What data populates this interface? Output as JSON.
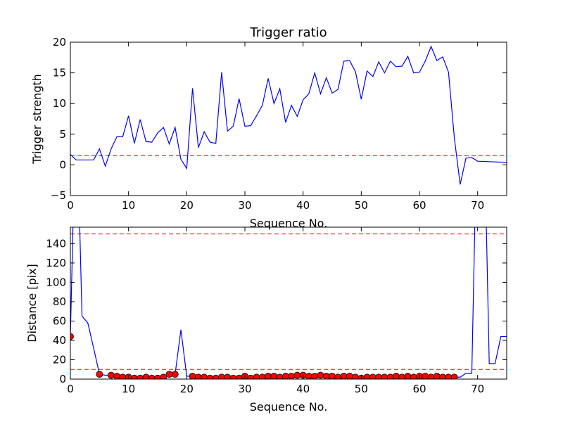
{
  "chart_data": [
    {
      "type": "line",
      "title": "Trigger ratio",
      "xlabel": "Sequence No.",
      "ylabel": "Trigger strength",
      "xlim": [
        0,
        75
      ],
      "ylim": [
        -5,
        20
      ],
      "xticks": [
        0,
        10,
        20,
        30,
        40,
        50,
        60,
        70
      ],
      "yticks": [
        -5,
        0,
        5,
        10,
        15,
        20
      ],
      "xtick_labels": [
        "0",
        "10",
        "20",
        "30",
        "40",
        "50",
        "60",
        "70"
      ],
      "ytick_labels": [
        "−5",
        "0",
        "5",
        "10",
        "15",
        "20"
      ],
      "grid": false,
      "series": [
        {
          "color": "#0000ff",
          "x": [
            0,
            1,
            2,
            3,
            4,
            5,
            6,
            7,
            8,
            9,
            10,
            11,
            12,
            13,
            14,
            15,
            16,
            17,
            18,
            19,
            20,
            21,
            22,
            23,
            24,
            25,
            26,
            27,
            28,
            29,
            30,
            31,
            32,
            33,
            34,
            35,
            36,
            37,
            38,
            39,
            40,
            41,
            42,
            43,
            44,
            45,
            46,
            47,
            48,
            49,
            50,
            51,
            52,
            53,
            54,
            55,
            56,
            57,
            58,
            59,
            60,
            61,
            62,
            63,
            64,
            65,
            66,
            67,
            68,
            69,
            70,
            75
          ],
          "y": [
            1.7,
            0.8,
            0.8,
            0.8,
            0.8,
            2.6,
            -0.2,
            2.6,
            4.6,
            4.6,
            8.0,
            3.5,
            7.4,
            3.8,
            3.7,
            5.2,
            6.1,
            3.4,
            6.1,
            0.9,
            -0.6,
            12.5,
            2.8,
            5.4,
            3.7,
            3.5,
            15.1,
            5.5,
            6.3,
            10.8,
            6.3,
            6.4,
            8.0,
            9.7,
            14.1,
            10.0,
            12.4,
            6.9,
            9.7,
            7.9,
            10.6,
            11.6,
            15.0,
            11.6,
            14.2,
            11.7,
            12.3,
            16.9,
            17.0,
            15.2,
            10.7,
            15.3,
            14.4,
            16.8,
            15.0,
            16.9,
            16.0,
            16.1,
            17.7,
            15.0,
            15.1,
            16.9,
            19.3,
            17.0,
            17.6,
            15.1,
            4.4,
            -3.2,
            1.1,
            1.2,
            0.6,
            0.4
          ]
        }
      ],
      "threshold": {
        "y": 1.5,
        "color": "#ff0000",
        "style": "dashed"
      }
    },
    {
      "type": "line",
      "xlabel": "Sequence No.",
      "ylabel": "Distance [pix]",
      "xlim": [
        0,
        75
      ],
      "ylim": [
        0,
        157
      ],
      "xticks": [
        0,
        10,
        20,
        30,
        40,
        50,
        60,
        70
      ],
      "yticks": [
        0,
        20,
        40,
        60,
        80,
        100,
        120,
        140
      ],
      "xtick_labels": [
        "0",
        "10",
        "20",
        "30",
        "40",
        "50",
        "60",
        "70"
      ],
      "ytick_labels": [
        "0",
        "20",
        "40",
        "60",
        "80",
        "100",
        "120",
        "140"
      ],
      "grid": false,
      "series": [
        {
          "color": "#0000ff",
          "x": [
            0,
            1,
            2,
            3,
            4,
            5,
            6,
            7,
            8,
            9,
            10,
            11,
            12,
            13,
            14,
            15,
            16,
            17,
            18,
            19,
            20,
            21,
            22,
            23,
            24,
            25,
            26,
            27,
            28,
            29,
            30,
            31,
            32,
            33,
            34,
            35,
            36,
            37,
            38,
            39,
            40,
            41,
            42,
            43,
            44,
            45,
            46,
            47,
            48,
            49,
            50,
            51,
            52,
            53,
            54,
            55,
            56,
            57,
            58,
            59,
            60,
            61,
            62,
            63,
            64,
            65,
            66,
            67,
            68,
            69,
            70,
            71,
            72,
            73,
            74,
            75
          ],
          "y": [
            44,
            300,
            65,
            58,
            32,
            5,
            4,
            4,
            3,
            2,
            2,
            1,
            1,
            2,
            1,
            1,
            2,
            5,
            5,
            51,
            3,
            3,
            2,
            2,
            1,
            1,
            2,
            2,
            1,
            1,
            3,
            1,
            2,
            2,
            3,
            3,
            2,
            3,
            3,
            4,
            4,
            3,
            3,
            4,
            3,
            3,
            2,
            3,
            3,
            2,
            1,
            2,
            2,
            2,
            2,
            2,
            3,
            2,
            3,
            2,
            3,
            3,
            2,
            3,
            2,
            2,
            2,
            2,
            6,
            6,
            300,
            300,
            16,
            16,
            44,
            44
          ]
        },
        {
          "name_hidden": true,
          "color": "#ff0000",
          "marker": "circle",
          "x": [
            0,
            5,
            7,
            8,
            9,
            10,
            11,
            12,
            13,
            14,
            15,
            16,
            17,
            18,
            21,
            22,
            23,
            24,
            25,
            26,
            27,
            28,
            29,
            30,
            31,
            32,
            33,
            34,
            35,
            36,
            37,
            38,
            39,
            40,
            41,
            42,
            43,
            44,
            45,
            46,
            47,
            48,
            49,
            50,
            51,
            52,
            53,
            54,
            55,
            56,
            57,
            58,
            59,
            60,
            61,
            62,
            63,
            64,
            65,
            66
          ],
          "y": [
            44,
            5,
            4,
            3,
            2,
            2,
            1,
            1,
            2,
            1,
            1,
            2,
            5,
            5,
            3,
            2,
            2,
            1,
            1,
            2,
            2,
            1,
            1,
            3,
            1,
            2,
            2,
            3,
            3,
            2,
            3,
            3,
            4,
            4,
            3,
            3,
            4,
            3,
            3,
            2,
            3,
            3,
            2,
            1,
            2,
            2,
            2,
            2,
            2,
            3,
            2,
            3,
            2,
            3,
            3,
            2,
            3,
            2,
            2,
            2
          ]
        }
      ],
      "thresholds": [
        {
          "y": 150,
          "color": "#ff0000",
          "style": "dashed"
        },
        {
          "y": 10,
          "color": "#ff0000",
          "style": "dashed"
        }
      ]
    }
  ]
}
